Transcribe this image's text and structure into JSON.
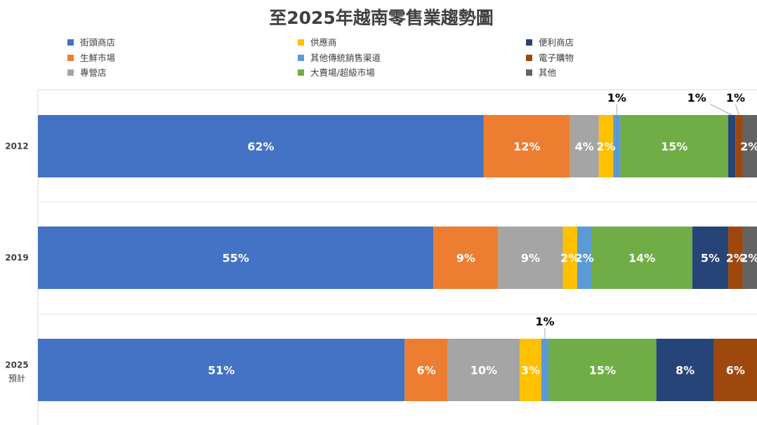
{
  "chart_data": {
    "type": "bar",
    "orientation": "horizontal",
    "stacked": "percent",
    "title": "至2025年越南零售業趨勢圖",
    "legend_position": "top",
    "categories": [
      {
        "label": "2012",
        "sublabel": ""
      },
      {
        "label": "2019",
        "sublabel": ""
      },
      {
        "label": "2025",
        "sublabel": "預計"
      }
    ],
    "series": [
      {
        "name": "街頭商店",
        "color": "#4472C4",
        "values": [
          62,
          55,
          51
        ],
        "labels": [
          "62%",
          "55%",
          "51%"
        ]
      },
      {
        "name": "生鮮市場",
        "color": "#ED7D31",
        "values": [
          12,
          9,
          6
        ],
        "labels": [
          "12%",
          "9%",
          "6%"
        ]
      },
      {
        "name": "專營店",
        "color": "#A5A5A5",
        "values": [
          4,
          9,
          10
        ],
        "labels": [
          "4%",
          "9%",
          "10%"
        ]
      },
      {
        "name": "供應商",
        "color": "#FFC000",
        "values": [
          2,
          2,
          3
        ],
        "labels": [
          "2%",
          "2%",
          "3%"
        ]
      },
      {
        "name": "其他傳統銷售渠道",
        "color": "#5B9BD5",
        "values": [
          1,
          2,
          1
        ],
        "labels": [
          "1%",
          "2%",
          "1%"
        ]
      },
      {
        "name": "大賣場/超級市場",
        "color": "#70AD47",
        "values": [
          15,
          14,
          15
        ],
        "labels": [
          "15%",
          "14%",
          "15%"
        ]
      },
      {
        "name": "便利商店",
        "color": "#264478",
        "values": [
          1,
          5,
          8
        ],
        "labels": [
          "1%",
          "5%",
          "8%"
        ]
      },
      {
        "name": "電子購物",
        "color": "#9E480E",
        "values": [
          1,
          2,
          6
        ],
        "labels": [
          "1%",
          "2%",
          "6%"
        ]
      },
      {
        "name": "其他",
        "color": "#636363",
        "values": [
          2,
          2,
          0
        ],
        "labels": [
          "2%",
          "2%",
          ""
        ]
      }
    ],
    "xlim": [
      0,
      100
    ],
    "grid": false
  }
}
